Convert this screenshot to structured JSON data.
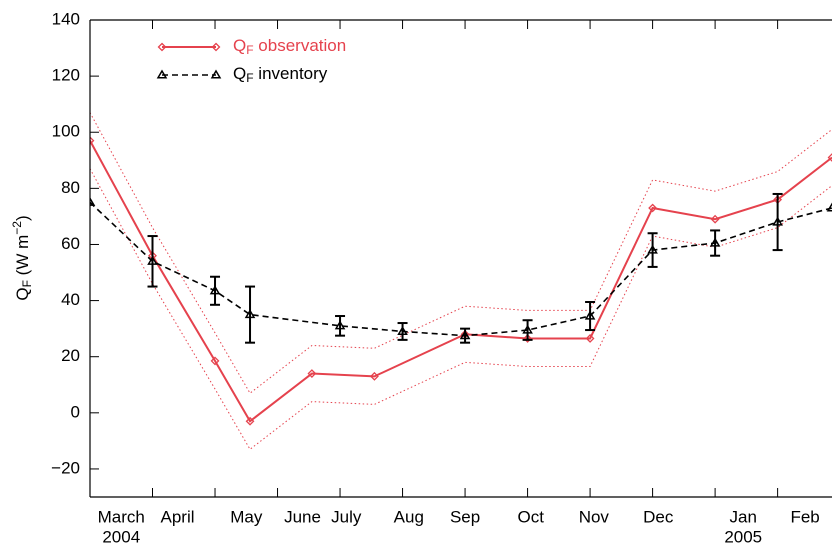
{
  "chart_data": {
    "type": "line",
    "ylabel": {
      "main": "Q",
      "sub": "F",
      "rest": " (W m",
      "sup": "−2",
      "end": ")"
    },
    "xlim": [
      0,
      11.87
    ],
    "ylim": [
      -30,
      140
    ],
    "yticks": [
      {
        "value": -20,
        "label": "−20"
      },
      0,
      20,
      40,
      60,
      80,
      100,
      120,
      140
    ],
    "xticks": [
      1,
      2,
      3,
      4,
      5,
      6,
      7,
      8,
      9,
      10,
      11
    ],
    "xlabels": [
      {
        "value": 0.5,
        "label": "March"
      },
      {
        "value": 1.4,
        "label": "April"
      },
      {
        "value": 2.5,
        "label": "May"
      },
      {
        "value": 3.4,
        "label": "June"
      },
      {
        "value": 4.1,
        "label": "July"
      },
      {
        "value": 5.1,
        "label": "Aug"
      },
      {
        "value": 6.0,
        "label": "Sep"
      },
      {
        "value": 7.05,
        "label": "Oct"
      },
      {
        "value": 8.06,
        "label": "Nov"
      },
      {
        "value": 9.09,
        "label": "Dec"
      },
      {
        "value": 10.45,
        "label": "Jan"
      },
      {
        "value": 11.44,
        "label": "Feb"
      }
    ],
    "year_labels": [
      {
        "value": 0.5,
        "label": "2004"
      },
      {
        "value": 10.45,
        "label": "2005"
      }
    ],
    "series": [
      {
        "legend_label": {
          "main": "Q",
          "sub": "F",
          "rest": " observation"
        },
        "color": "#e5424d",
        "dash": false,
        "marker": "diamond",
        "x": [
          0,
          1,
          2,
          2.56,
          3.55,
          4.55,
          6,
          7,
          8,
          9,
          10,
          11,
          11.87
        ],
        "values": [
          97,
          56,
          18.5,
          -3,
          14,
          13,
          28,
          26.5,
          26.5,
          73,
          69,
          76,
          91
        ],
        "uncertainty": 10
      },
      {
        "legend_label": {
          "main": "Q",
          "sub": "F",
          "rest": " inventory"
        },
        "color": "#000000",
        "dash": true,
        "marker": "triangle",
        "x": [
          0,
          1,
          2,
          2.56,
          4,
          5,
          6,
          7,
          8,
          9,
          10,
          11,
          11.87
        ],
        "values": [
          75,
          54,
          43.5,
          35,
          31,
          29,
          27.5,
          29.5,
          34.5,
          58,
          60.5,
          68,
          73
        ],
        "errors": [
          null,
          9,
          5,
          10,
          3.5,
          3,
          2.5,
          3.5,
          5,
          6,
          4.5,
          10,
          null
        ]
      }
    ]
  }
}
